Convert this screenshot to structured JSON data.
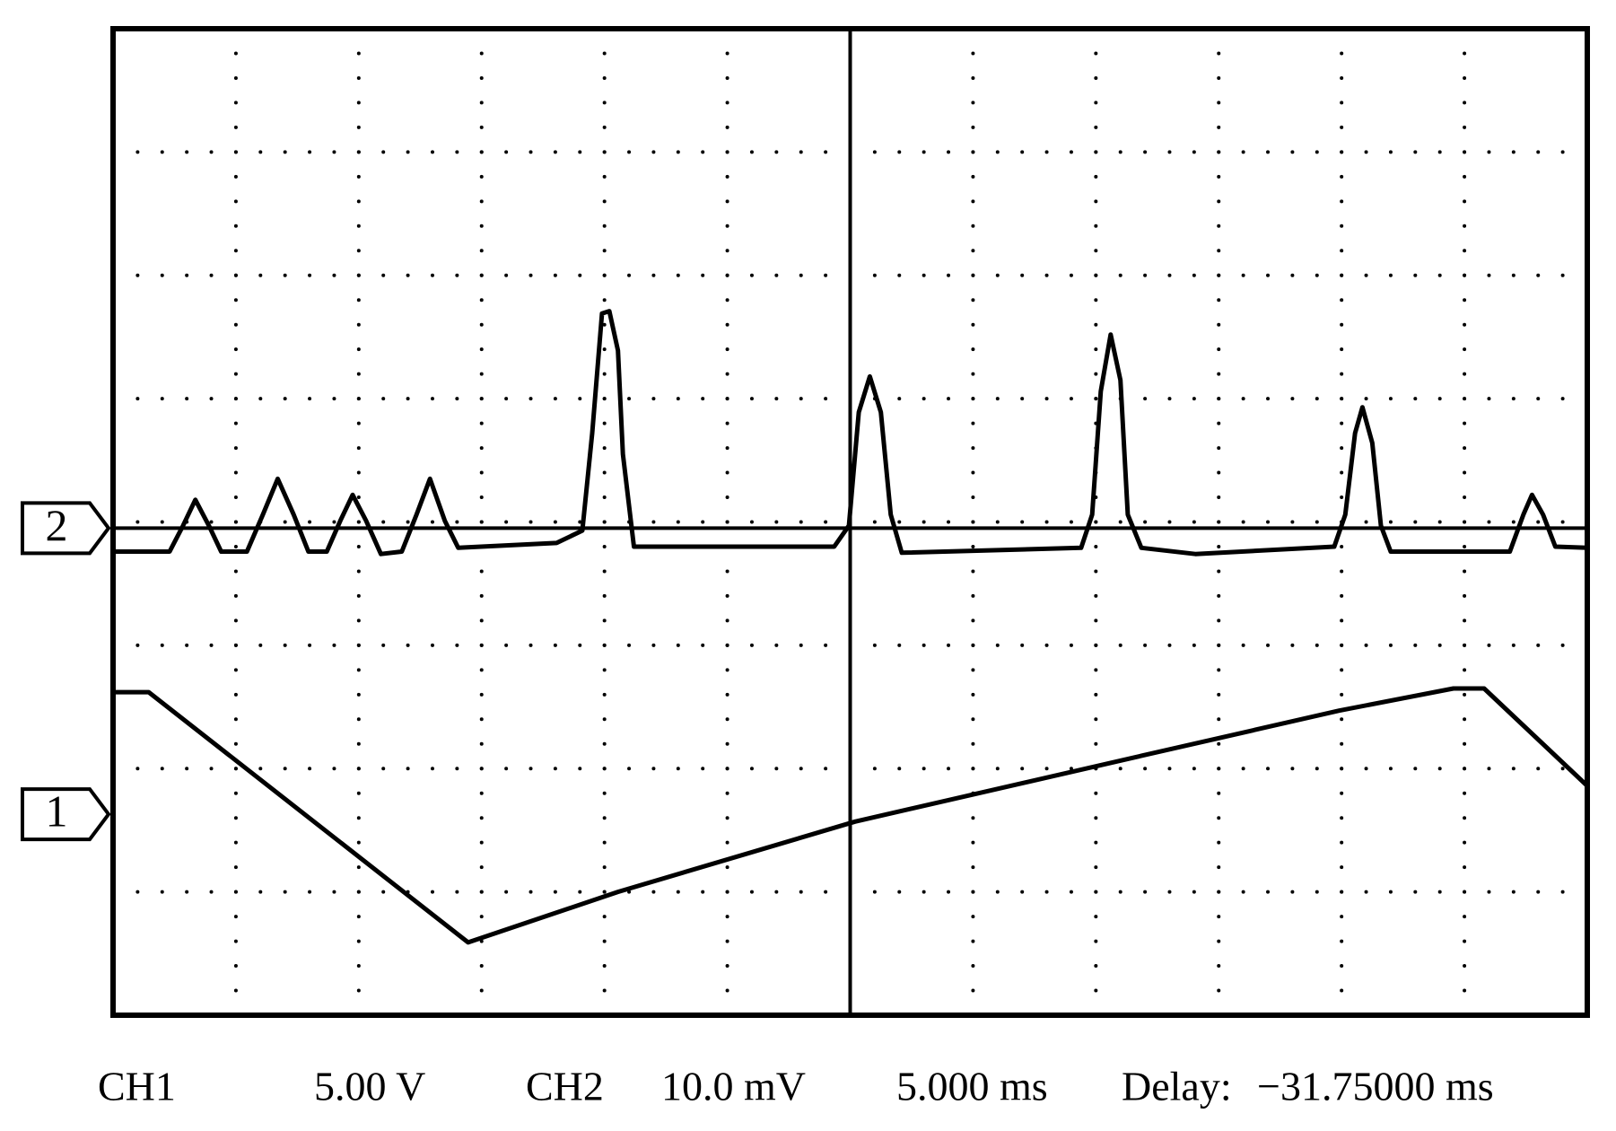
{
  "chart_data": {
    "type": "line",
    "xlim": [
      0,
      12
    ],
    "ylim": [
      0,
      8
    ],
    "xticks": [
      0,
      1,
      2,
      3,
      4,
      5,
      6,
      7,
      8,
      9,
      10,
      11,
      12
    ],
    "yticks": [
      0,
      1,
      2,
      3,
      4,
      5,
      6,
      7,
      8
    ],
    "grid": true,
    "timebase": "5.000 ms",
    "delay_label": "Delay:",
    "delay": "−31.75000 ms",
    "series": [
      {
        "name": "CH1",
        "scale": "5.00 V",
        "marker_label": "1",
        "ref": 1.63,
        "color": "#000000",
        "x": [
          0,
          0.29,
          2.89,
          4.11,
          6.04,
          8.31,
          9.98,
          10.91,
          11.16,
          12.0
        ],
        "y": [
          2.62,
          2.62,
          0.59,
          1.0,
          1.57,
          2.09,
          2.47,
          2.65,
          2.65,
          1.86
        ]
      },
      {
        "name": "CH2",
        "scale": "10.0 mV",
        "marker_label": "2",
        "ref": 3.95,
        "color": "#000000",
        "x": [
          0,
          0.46,
          0.57,
          0.67,
          0.78,
          0.88,
          1.09,
          1.22,
          1.34,
          1.47,
          1.59,
          1.74,
          1.85,
          1.95,
          2.06,
          2.18,
          2.35,
          2.47,
          2.58,
          2.7,
          2.81,
          3.61,
          3.82,
          3.9,
          3.98,
          4.04,
          4.11,
          4.15,
          4.24,
          5.87,
          5.99,
          6.07,
          6.16,
          6.25,
          6.33,
          6.42,
          7.88,
          7.97,
          8.04,
          8.12,
          8.2,
          8.26,
          8.37,
          8.81,
          9.94,
          10.03,
          10.11,
          10.17,
          10.25,
          10.32,
          10.4,
          11.37,
          11.48,
          11.55,
          11.64,
          11.74,
          12.0
        ],
        "y": [
          3.76,
          3.76,
          3.97,
          4.18,
          3.97,
          3.76,
          3.76,
          4.06,
          4.35,
          4.06,
          3.76,
          3.76,
          4.01,
          4.22,
          4.01,
          3.74,
          3.76,
          4.06,
          4.35,
          4.01,
          3.79,
          3.83,
          3.93,
          4.72,
          5.69,
          5.71,
          5.39,
          4.55,
          3.8,
          3.8,
          3.97,
          4.89,
          5.18,
          4.89,
          4.06,
          3.75,
          3.79,
          4.06,
          5.06,
          5.52,
          5.15,
          4.06,
          3.79,
          3.74,
          3.8,
          4.06,
          4.72,
          4.93,
          4.64,
          3.97,
          3.76,
          3.76,
          4.06,
          4.22,
          4.06,
          3.8,
          3.79
        ]
      }
    ]
  }
}
